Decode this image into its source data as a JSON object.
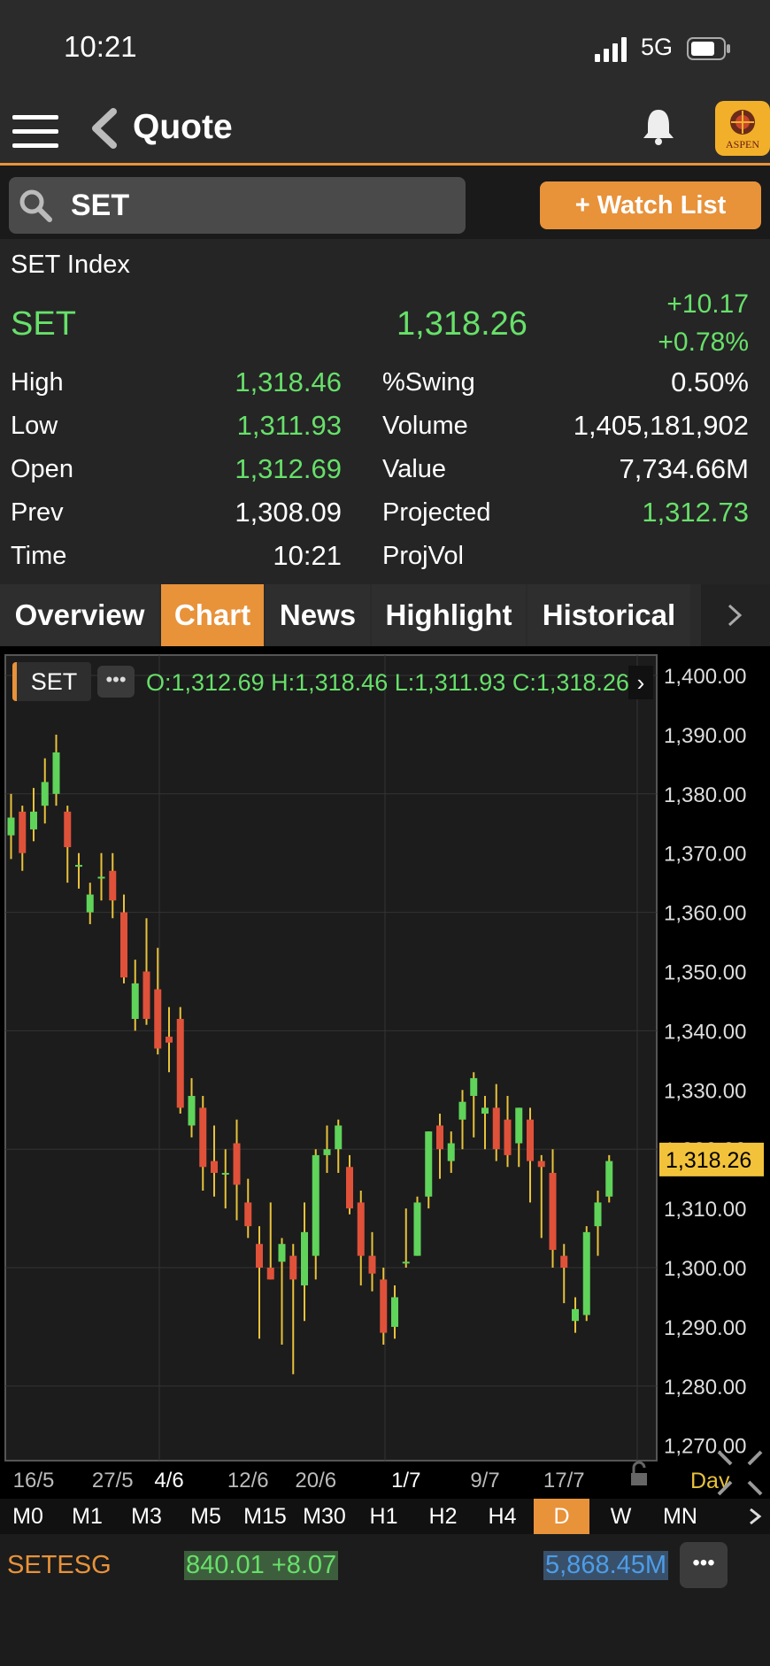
{
  "status_bar": {
    "time": "10:21",
    "network": "5G"
  },
  "nav": {
    "title": "Quote",
    "logo_text": "ASPEN"
  },
  "search": {
    "value": "SET"
  },
  "watchlist_button": "+ Watch List",
  "quote": {
    "index_name": "SET Index",
    "symbol": "SET",
    "last": "1,318.26",
    "change": "+10.17",
    "change_pct": "+0.78%",
    "stats_left": [
      {
        "label": "High",
        "value": "1,318.46",
        "color": "#67e06a"
      },
      {
        "label": "Low",
        "value": "1,311.93",
        "color": "#67e06a"
      },
      {
        "label": "Open",
        "value": "1,312.69",
        "color": "#67e06a"
      },
      {
        "label": "Prev",
        "value": "1,308.09",
        "color": "#ffffff"
      },
      {
        "label": "Time",
        "value": "10:21",
        "color": "#ffffff"
      }
    ],
    "stats_right": [
      {
        "label": "%Swing",
        "value": "0.50%",
        "color": "#ffffff"
      },
      {
        "label": "Volume",
        "value": "1,405,181,902",
        "color": "#ffffff"
      },
      {
        "label": "Value",
        "value": "7,734.66M",
        "color": "#ffffff"
      },
      {
        "label": "Projected",
        "value": "1,312.73",
        "color": "#67e06a"
      },
      {
        "label": "ProjVol",
        "value": "",
        "color": "#ffffff"
      }
    ]
  },
  "tabs": [
    {
      "label": "Overview",
      "active": false
    },
    {
      "label": "Chart",
      "active": true
    },
    {
      "label": "News",
      "active": false
    },
    {
      "label": "Highlight",
      "active": false
    },
    {
      "label": "Historical",
      "active": false
    }
  ],
  "chart_header": {
    "symbol": "SET",
    "more": "•••",
    "ohlc": "O:1,312.69  H:1,318.46  L:1,311.93  C:1,318.26"
  },
  "chart_data": {
    "type": "candlestick",
    "ylim": [
      1270,
      1400
    ],
    "y_ticks": [
      "1,400.00",
      "1,390.00",
      "1,380.00",
      "1,370.00",
      "1,360.00",
      "1,350.00",
      "1,340.00",
      "1,330.00",
      "1,320.00",
      "1,310.00",
      "1,300.00",
      "1,290.00",
      "1,280.00",
      "1,270.00"
    ],
    "last_price_label": "1,318.26",
    "last_price": 1318.26,
    "x_labels": [
      "16/5",
      "27/5",
      "4/6",
      "12/6",
      "20/6",
      "1/7",
      "9/7",
      "17/7"
    ],
    "x_label_index": [
      2,
      9,
      14,
      21,
      27,
      35,
      42,
      49
    ],
    "period_label": "Day",
    "up_color": "#5fd35a",
    "down_color": "#e0513a",
    "wick_color": "#e8c23a",
    "candles": [
      {
        "o": 1373,
        "h": 1380,
        "l": 1369,
        "c": 1376
      },
      {
        "o": 1377,
        "h": 1378,
        "l": 1367,
        "c": 1370
      },
      {
        "o": 1374,
        "h": 1381,
        "l": 1372,
        "c": 1377
      },
      {
        "o": 1378,
        "h": 1386,
        "l": 1375,
        "c": 1382
      },
      {
        "o": 1380,
        "h": 1390,
        "l": 1378,
        "c": 1387
      },
      {
        "o": 1377,
        "h": 1378,
        "l": 1365,
        "c": 1371
      },
      {
        "o": 1368,
        "h": 1370,
        "l": 1364,
        "c": 1368
      },
      {
        "o": 1360,
        "h": 1365,
        "l": 1358,
        "c": 1363
      },
      {
        "o": 1366,
        "h": 1370,
        "l": 1362,
        "c": 1366
      },
      {
        "o": 1367,
        "h": 1370,
        "l": 1359,
        "c": 1362
      },
      {
        "o": 1360,
        "h": 1363,
        "l": 1348,
        "c": 1349
      },
      {
        "o": 1342,
        "h": 1352,
        "l": 1340,
        "c": 1348
      },
      {
        "o": 1350,
        "h": 1359,
        "l": 1341,
        "c": 1342
      },
      {
        "o": 1347,
        "h": 1354,
        "l": 1336,
        "c": 1337
      },
      {
        "o": 1339,
        "h": 1344,
        "l": 1333,
        "c": 1338
      },
      {
        "o": 1342,
        "h": 1344,
        "l": 1326,
        "c": 1327
      },
      {
        "o": 1324,
        "h": 1332,
        "l": 1322,
        "c": 1329
      },
      {
        "o": 1327,
        "h": 1329,
        "l": 1313,
        "c": 1317
      },
      {
        "o": 1318,
        "h": 1324,
        "l": 1312,
        "c": 1316
      },
      {
        "o": 1316,
        "h": 1320,
        "l": 1310,
        "c": 1316
      },
      {
        "o": 1321,
        "h": 1325,
        "l": 1308,
        "c": 1314
      },
      {
        "o": 1311,
        "h": 1315,
        "l": 1305,
        "c": 1307
      },
      {
        "o": 1304,
        "h": 1307,
        "l": 1288,
        "c": 1300
      },
      {
        "o": 1300,
        "h": 1311,
        "l": 1298,
        "c": 1298
      },
      {
        "o": 1301,
        "h": 1305,
        "l": 1287,
        "c": 1304
      },
      {
        "o": 1302,
        "h": 1304,
        "l": 1282,
        "c": 1298
      },
      {
        "o": 1297,
        "h": 1311,
        "l": 1291,
        "c": 1306
      },
      {
        "o": 1302,
        "h": 1320,
        "l": 1298,
        "c": 1319
      },
      {
        "o": 1319,
        "h": 1324,
        "l": 1316,
        "c": 1320
      },
      {
        "o": 1320,
        "h": 1325,
        "l": 1316,
        "c": 1324
      },
      {
        "o": 1317,
        "h": 1319,
        "l": 1309,
        "c": 1310
      },
      {
        "o": 1311,
        "h": 1313,
        "l": 1297,
        "c": 1302
      },
      {
        "o": 1302,
        "h": 1306,
        "l": 1296,
        "c": 1299
      },
      {
        "o": 1298,
        "h": 1300,
        "l": 1287,
        "c": 1289
      },
      {
        "o": 1290,
        "h": 1297,
        "l": 1288,
        "c": 1295
      },
      {
        "o": 1301,
        "h": 1310,
        "l": 1300,
        "c": 1301
      },
      {
        "o": 1302,
        "h": 1312,
        "l": 1302,
        "c": 1311
      },
      {
        "o": 1312,
        "h": 1323,
        "l": 1310,
        "c": 1323
      },
      {
        "o": 1324,
        "h": 1326,
        "l": 1315,
        "c": 1320
      },
      {
        "o": 1318,
        "h": 1323,
        "l": 1316,
        "c": 1321
      },
      {
        "o": 1325,
        "h": 1330,
        "l": 1320,
        "c": 1328
      },
      {
        "o": 1329,
        "h": 1333,
        "l": 1322,
        "c": 1332
      },
      {
        "o": 1326,
        "h": 1329,
        "l": 1320,
        "c": 1327
      },
      {
        "o": 1327,
        "h": 1331,
        "l": 1318,
        "c": 1320
      },
      {
        "o": 1325,
        "h": 1329,
        "l": 1317,
        "c": 1319
      },
      {
        "o": 1321,
        "h": 1327,
        "l": 1317,
        "c": 1327
      },
      {
        "o": 1325,
        "h": 1327,
        "l": 1311,
        "c": 1318
      },
      {
        "o": 1318,
        "h": 1319,
        "l": 1305,
        "c": 1317
      },
      {
        "o": 1316,
        "h": 1320,
        "l": 1300,
        "c": 1303
      },
      {
        "o": 1302,
        "h": 1304,
        "l": 1294,
        "c": 1300
      },
      {
        "o": 1291,
        "h": 1295,
        "l": 1289,
        "c": 1293
      },
      {
        "o": 1292,
        "h": 1307,
        "l": 1291,
        "c": 1306
      },
      {
        "o": 1307,
        "h": 1313,
        "l": 1302,
        "c": 1311
      },
      {
        "o": 1312,
        "h": 1319,
        "l": 1311,
        "c": 1318
      }
    ]
  },
  "timeframes": [
    {
      "label": "M0",
      "active": false
    },
    {
      "label": "M1",
      "active": false
    },
    {
      "label": "M3",
      "active": false
    },
    {
      "label": "M5",
      "active": false
    },
    {
      "label": "M15",
      "active": false
    },
    {
      "label": "M30",
      "active": false
    },
    {
      "label": "H1",
      "active": false
    },
    {
      "label": "H2",
      "active": false
    },
    {
      "label": "H4",
      "active": false
    },
    {
      "label": "D",
      "active": true
    },
    {
      "label": "W",
      "active": false
    },
    {
      "label": "MN",
      "active": false
    }
  ],
  "bottom_ticker": {
    "name": "SETESG",
    "price_change": "840.01 +8.07",
    "value": "5,868.45M",
    "more": "•••"
  }
}
